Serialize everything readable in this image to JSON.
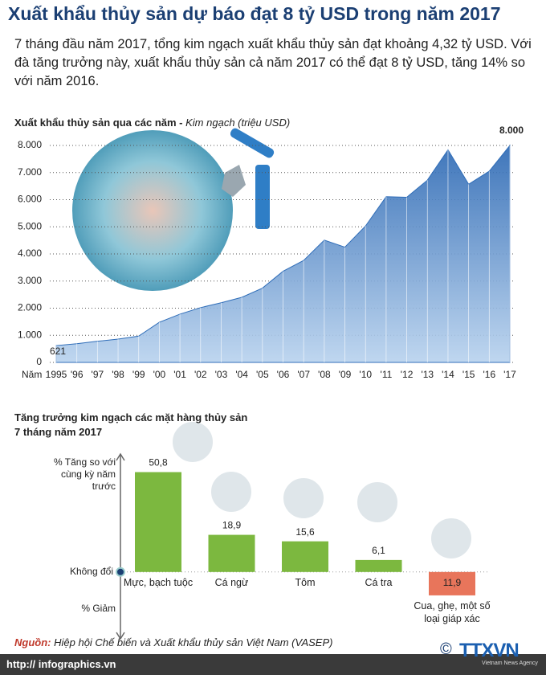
{
  "title": "Xuất khẩu thủy sản dự báo đạt 8 tỷ USD trong năm 2017",
  "intro": "7 tháng đầu năm 2017, tổng kim ngạch xuất khẩu thủy sản đạt khoảng 4,32 tỷ USD. Với đà tăng trưởng này, xuất khẩu thủy sản cả năm 2017 có thể đạt 8 tỷ USD, tăng 14% so với năm 2016.",
  "chart_data": [
    {
      "type": "area",
      "title": "Xuất khẩu thủy sản qua các năm - ",
      "subtitle": "Kim ngạch (triệu USD)",
      "x_label": "Năm",
      "categories": [
        "1995",
        "'96",
        "'97",
        "'98",
        "'99",
        "'00",
        "'01",
        "'02",
        "'03",
        "'04",
        "'05",
        "'06",
        "'07",
        "'08",
        "'09",
        "'10",
        "'11",
        "'12",
        "'13",
        "'14",
        "'15",
        "'16",
        "'17"
      ],
      "values": [
        621,
        690,
        780,
        860,
        970,
        1480,
        1780,
        2020,
        2200,
        2400,
        2740,
        3360,
        3760,
        4510,
        4250,
        5030,
        6110,
        6090,
        6720,
        7840,
        6570,
        7050,
        8000
      ],
      "value_labels": [
        "621",
        null,
        null,
        null,
        null,
        null,
        null,
        null,
        null,
        null,
        null,
        null,
        null,
        null,
        null,
        null,
        null,
        null,
        null,
        null,
        null,
        null,
        "8.000"
      ],
      "color": "#2f6db8",
      "ylim": [
        0,
        8000
      ],
      "yticks": [
        0,
        {
          "value": 1000,
          "label": "1.000"
        },
        {
          "value": 2000,
          "label": "2.000"
        },
        {
          "value": 3000,
          "label": "3.000"
        },
        {
          "value": 4000,
          "label": "4.000"
        },
        {
          "value": 5000,
          "label": "5.000"
        },
        {
          "value": 6000,
          "label": "6.000"
        },
        {
          "value": 7000,
          "label": "7.000"
        },
        {
          "value": 8000,
          "label": "8.000"
        }
      ],
      "grid": true
    },
    {
      "type": "bar",
      "title": "Tăng trưởng kim ngạch các mặt hàng thủy sản",
      "subtitle": "7 tháng năm 2017",
      "y_label_top": "% Tăng so với cùng kỳ năm trước",
      "y_label_bottom": "% Giảm",
      "categories": [
        "Mực, bạch tuộc",
        "Cá ngừ",
        "Tôm",
        "Cá tra",
        "Cua, ghẹ, một số loại giáp xác"
      ],
      "values": [
        50.8,
        18.9,
        15.6,
        6.1,
        -11.9
      ],
      "value_labels": [
        "50,8",
        "18,9",
        "15,6",
        "6,1",
        "11,9"
      ],
      "colors": [
        "#7cb83f",
        "#7cb83f",
        "#7cb83f",
        "#7cb83f",
        "#e8755b"
      ],
      "ylim": [
        -34,
        60
      ],
      "yticks": [
        {
          "value": 0,
          "label": "Không đổi"
        }
      ]
    }
  ],
  "source_label": "Nguồn:",
  "source": "Hiệp hội Chế biến và Xuất khẩu thủy sản Việt Nam (VASEP)",
  "website": "http:// infographics.vn",
  "copyright": "©",
  "logo": "TTXVN",
  "logo_sub": "Vietnam News Agency"
}
